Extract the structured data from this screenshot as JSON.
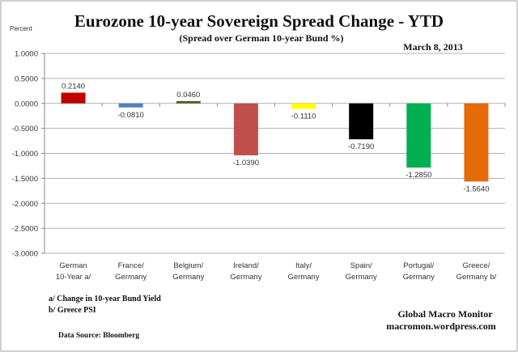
{
  "chart_data": {
    "type": "bar",
    "title": "Eurozone 10-year Sovereign Spread Change - YTD",
    "subtitle": "(Spread over German 10-year Bund %)",
    "date": "March 8,  2013",
    "ylabel": "Percent",
    "ylim": [
      -3.0,
      1.0
    ],
    "yticks": [
      "1.0000",
      "0.5000",
      "0.0000",
      "-0.5000",
      "-1.0000",
      "-1.5000",
      "-2.0000",
      "-2.5000",
      "-3.0000"
    ],
    "grid": true,
    "categories": [
      [
        "German",
        "10-Year a/"
      ],
      [
        "France/",
        "Germany"
      ],
      [
        "Belgium/",
        "Germany"
      ],
      [
        "Ireland/",
        "Germany"
      ],
      [
        "Italy/",
        "Germany"
      ],
      [
        "Spain/",
        "Germany"
      ],
      [
        "Portugal/",
        "Germany"
      ],
      [
        "Greece/",
        "Germany b/"
      ]
    ],
    "values": [
      0.214,
      -0.081,
      0.046,
      -1.039,
      -0.111,
      -0.719,
      -1.285,
      -1.564
    ],
    "data_labels": [
      "0.2140",
      "-0.0810",
      "0.0460",
      "-1.0390",
      "-0.1110",
      "-0.7190",
      "-1.2850",
      "-1.5640"
    ],
    "colors": [
      "#c00000",
      "#4f81bd",
      "#4f6228",
      "#c0504d",
      "#ffff00",
      "#000000",
      "#00b050",
      "#e36c09"
    ],
    "footnotes": [
      "a/  Change in 10-year Bund Yield",
      "b/  Greece PSI"
    ],
    "source": "Data Source:  Bloomberg",
    "credit": [
      "Global Macro Monitor",
      "macromon.wordpress.com"
    ]
  }
}
